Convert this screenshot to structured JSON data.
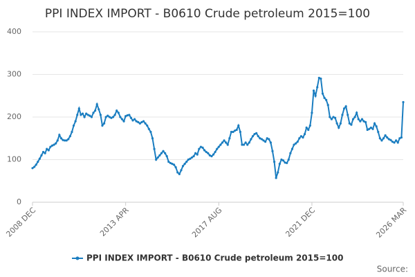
{
  "chart_data": {
    "type": "line",
    "title": "PPI INDEX IMPORT - B0610 Crude petroleum 2015=100",
    "source": "Source:",
    "categories": [
      "2008 DEC",
      null,
      null,
      null,
      null,
      null,
      null,
      null,
      null,
      null,
      null,
      null,
      null,
      null,
      null,
      null,
      null,
      null,
      null,
      null,
      null,
      null,
      null,
      null,
      null,
      null,
      null,
      null,
      null,
      null,
      null,
      null,
      null,
      null,
      null,
      null,
      null,
      null,
      null,
      null,
      null,
      null,
      null,
      null,
      null,
      null,
      null,
      null,
      null,
      null,
      null,
      null,
      "2013 APR",
      null,
      null,
      null,
      null,
      null,
      null,
      null,
      null,
      null,
      null,
      null,
      null,
      null,
      null,
      null,
      null,
      null,
      null,
      null,
      null,
      null,
      null,
      null,
      null,
      null,
      null,
      null,
      null,
      null,
      null,
      null,
      null,
      null,
      null,
      null,
      null,
      null,
      null,
      null,
      null,
      null,
      null,
      null,
      null,
      null,
      null,
      null,
      null,
      null,
      null,
      null,
      "2017 AUG",
      null,
      null,
      null,
      null,
      null,
      null,
      null,
      null,
      null,
      null,
      null,
      null,
      null,
      null,
      null,
      null,
      null,
      null,
      null,
      null,
      null,
      null,
      null,
      null,
      null,
      null,
      null,
      null,
      null,
      null,
      null,
      null,
      null,
      null,
      null,
      null,
      null,
      null,
      null,
      null,
      null,
      null,
      null,
      null,
      null,
      null,
      null,
      null,
      null,
      null,
      null,
      "2021 DEC",
      null,
      null,
      null,
      null,
      null,
      null,
      null,
      null,
      null,
      null,
      null,
      null,
      null,
      null,
      null,
      null,
      null,
      null,
      null,
      null,
      null,
      null,
      null,
      null,
      null,
      null,
      null,
      null,
      null,
      null,
      null,
      null,
      null,
      null,
      null,
      null,
      null,
      null,
      null,
      null,
      null,
      null,
      null,
      null,
      null,
      null,
      null,
      null,
      null,
      null,
      "2026 MAR"
    ],
    "series": [
      {
        "name": "PPI INDEX IMPORT - B0610 Crude petroleum 2015=100",
        "color": "#1a7dc0",
        "values": [
          80,
          83,
          88,
          95,
          102,
          110,
          118,
          115,
          125,
          122,
          130,
          133,
          135,
          138,
          145,
          158,
          150,
          146,
          145,
          145,
          148,
          155,
          165,
          180,
          190,
          205,
          220,
          205,
          208,
          200,
          208,
          205,
          203,
          200,
          210,
          215,
          230,
          218,
          205,
          180,
          185,
          200,
          203,
          200,
          198,
          200,
          205,
          215,
          210,
          200,
          195,
          190,
          202,
          204,
          205,
          198,
          192,
          195,
          190,
          188,
          185,
          188,
          190,
          185,
          180,
          172,
          165,
          150,
          125,
          100,
          105,
          110,
          115,
          120,
          115,
          108,
          95,
          92,
          90,
          88,
          82,
          70,
          66,
          75,
          85,
          90,
          95,
          100,
          102,
          105,
          108,
          115,
          112,
          125,
          130,
          128,
          122,
          118,
          115,
          110,
          108,
          112,
          118,
          125,
          130,
          135,
          140,
          145,
          140,
          135,
          150,
          165,
          165,
          168,
          170,
          180,
          165,
          135,
          135,
          140,
          135,
          140,
          148,
          155,
          160,
          162,
          155,
          150,
          148,
          145,
          142,
          150,
          148,
          140,
          120,
          95,
          57,
          70,
          90,
          100,
          98,
          93,
          92,
          100,
          115,
          125,
          135,
          138,
          142,
          150,
          155,
          152,
          160,
          175,
          170,
          180,
          210,
          262,
          250,
          270,
          292,
          290,
          255,
          245,
          240,
          228,
          200,
          195,
          200,
          198,
          185,
          175,
          185,
          205,
          220,
          225,
          205,
          185,
          182,
          195,
          200,
          210,
          195,
          190,
          195,
          190,
          188,
          170,
          172,
          175,
          172,
          185,
          178,
          165,
          150,
          145,
          150,
          157,
          152,
          148,
          146,
          142,
          140,
          145,
          140,
          150,
          152,
          235
        ]
      }
    ],
    "ylim": [
      0,
      400
    ],
    "yticks": [
      0,
      100,
      200,
      300,
      400
    ],
    "grid": true
  }
}
